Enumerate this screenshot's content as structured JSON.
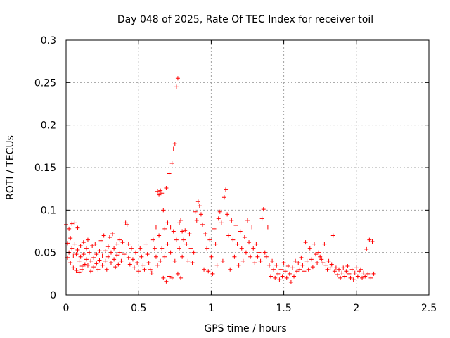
{
  "chart_data": {
    "type": "scatter",
    "title": "Day 048 of 2025, Rate Of TEC Index for receiver toil",
    "xlabel": "GPS time / hours",
    "ylabel": "ROTI / TECUs",
    "xlim": [
      0,
      2.5
    ],
    "ylim": [
      0,
      0.3
    ],
    "x_ticks": [
      0,
      0.5,
      1,
      1.5,
      2,
      2.5
    ],
    "x_tick_labels": [
      "0",
      "0.5",
      "1",
      "1.5",
      "2",
      "2.5"
    ],
    "y_ticks": [
      0,
      0.05,
      0.1,
      0.15,
      0.2,
      0.25,
      0.3
    ],
    "y_tick_labels": [
      "0",
      "0.05",
      "0.1",
      "0.15",
      "0.2",
      "0.25",
      "0.3"
    ],
    "grid": true,
    "marker": "+",
    "color": "#ff0000",
    "series": [
      {
        "name": "ROTI",
        "points": [
          [
            0.0,
            0.083
          ],
          [
            0.01,
            0.061
          ],
          [
            0.01,
            0.044
          ],
          [
            0.02,
            0.078
          ],
          [
            0.02,
            0.05
          ],
          [
            0.03,
            0.067
          ],
          [
            0.03,
            0.038
          ],
          [
            0.04,
            0.084
          ],
          [
            0.04,
            0.055
          ],
          [
            0.05,
            0.046
          ],
          [
            0.05,
            0.032
          ],
          [
            0.06,
            0.085
          ],
          [
            0.06,
            0.06
          ],
          [
            0.07,
            0.048
          ],
          [
            0.07,
            0.029
          ],
          [
            0.08,
            0.079
          ],
          [
            0.08,
            0.053
          ],
          [
            0.09,
            0.04
          ],
          [
            0.09,
            0.027
          ],
          [
            0.1,
            0.058
          ],
          [
            0.1,
            0.045
          ],
          [
            0.11,
            0.034
          ],
          [
            0.11,
            0.03
          ],
          [
            0.12,
            0.062
          ],
          [
            0.12,
            0.048
          ],
          [
            0.13,
            0.036
          ],
          [
            0.14,
            0.055
          ],
          [
            0.14,
            0.042
          ],
          [
            0.15,
            0.065
          ],
          [
            0.15,
            0.035
          ],
          [
            0.16,
            0.05
          ],
          [
            0.17,
            0.04
          ],
          [
            0.17,
            0.028
          ],
          [
            0.18,
            0.058
          ],
          [
            0.19,
            0.044
          ],
          [
            0.19,
            0.033
          ],
          [
            0.2,
            0.06
          ],
          [
            0.21,
            0.048
          ],
          [
            0.21,
            0.037
          ],
          [
            0.22,
            0.03
          ],
          [
            0.23,
            0.052
          ],
          [
            0.23,
            0.041
          ],
          [
            0.24,
            0.064
          ],
          [
            0.25,
            0.046
          ],
          [
            0.25,
            0.035
          ],
          [
            0.26,
            0.07
          ],
          [
            0.27,
            0.052
          ],
          [
            0.27,
            0.04
          ],
          [
            0.28,
            0.03
          ],
          [
            0.29,
            0.057
          ],
          [
            0.29,
            0.045
          ],
          [
            0.3,
            0.068
          ],
          [
            0.31,
            0.05
          ],
          [
            0.31,
            0.038
          ],
          [
            0.32,
            0.072
          ],
          [
            0.33,
            0.055
          ],
          [
            0.33,
            0.042
          ],
          [
            0.34,
            0.033
          ],
          [
            0.35,
            0.06
          ],
          [
            0.35,
            0.047
          ],
          [
            0.36,
            0.036
          ],
          [
            0.37,
            0.065
          ],
          [
            0.37,
            0.05
          ],
          [
            0.38,
            0.04
          ],
          [
            0.39,
            0.062
          ],
          [
            0.4,
            0.048
          ],
          [
            0.41,
            0.085
          ],
          [
            0.42,
            0.083
          ],
          [
            0.43,
            0.06
          ],
          [
            0.43,
            0.044
          ],
          [
            0.44,
            0.036
          ],
          [
            0.45,
            0.055
          ],
          [
            0.46,
            0.042
          ],
          [
            0.47,
            0.032
          ],
          [
            0.48,
            0.05
          ],
          [
            0.49,
            0.038
          ],
          [
            0.5,
            0.028
          ],
          [
            0.51,
            0.055
          ],
          [
            0.52,
            0.045
          ],
          [
            0.53,
            0.035
          ],
          [
            0.54,
            0.03
          ],
          [
            0.55,
            0.06
          ],
          [
            0.56,
            0.048
          ],
          [
            0.57,
            0.038
          ],
          [
            0.58,
            0.03
          ],
          [
            0.59,
            0.026
          ],
          [
            0.6,
            0.065
          ],
          [
            0.61,
            0.055
          ],
          [
            0.62,
            0.08
          ],
          [
            0.62,
            0.045
          ],
          [
            0.63,
            0.122
          ],
          [
            0.63,
            0.035
          ],
          [
            0.64,
            0.118
          ],
          [
            0.64,
            0.07
          ],
          [
            0.65,
            0.123
          ],
          [
            0.65,
            0.04
          ],
          [
            0.66,
            0.12
          ],
          [
            0.66,
            0.055
          ],
          [
            0.67,
            0.1
          ],
          [
            0.67,
            0.02
          ],
          [
            0.68,
            0.078
          ],
          [
            0.68,
            0.045
          ],
          [
            0.69,
            0.126
          ],
          [
            0.69,
            0.016
          ],
          [
            0.7,
            0.085
          ],
          [
            0.7,
            0.06
          ],
          [
            0.71,
            0.143
          ],
          [
            0.71,
            0.022
          ],
          [
            0.72,
            0.08
          ],
          [
            0.72,
            0.05
          ],
          [
            0.73,
            0.155
          ],
          [
            0.73,
            0.02
          ],
          [
            0.74,
            0.172
          ],
          [
            0.74,
            0.075
          ],
          [
            0.75,
            0.178
          ],
          [
            0.75,
            0.04
          ],
          [
            0.76,
            0.245
          ],
          [
            0.76,
            0.065
          ],
          [
            0.77,
            0.255
          ],
          [
            0.77,
            0.025
          ],
          [
            0.78,
            0.085
          ],
          [
            0.78,
            0.055
          ],
          [
            0.79,
            0.088
          ],
          [
            0.79,
            0.02
          ],
          [
            0.8,
            0.075
          ],
          [
            0.8,
            0.045
          ],
          [
            0.81,
            0.065
          ],
          [
            0.82,
            0.076
          ],
          [
            0.83,
            0.06
          ],
          [
            0.84,
            0.04
          ],
          [
            0.85,
            0.072
          ],
          [
            0.86,
            0.055
          ],
          [
            0.87,
            0.038
          ],
          [
            0.88,
            0.05
          ],
          [
            0.89,
            0.098
          ],
          [
            0.9,
            0.088
          ],
          [
            0.91,
            0.11
          ],
          [
            0.92,
            0.105
          ],
          [
            0.93,
            0.095
          ],
          [
            0.94,
            0.083
          ],
          [
            0.95,
            0.03
          ],
          [
            0.96,
            0.072
          ],
          [
            0.97,
            0.055
          ],
          [
            0.98,
            0.028
          ],
          [
            0.99,
            0.065
          ],
          [
            1.0,
            0.045
          ],
          [
            1.01,
            0.025
          ],
          [
            1.02,
            0.078
          ],
          [
            1.03,
            0.06
          ],
          [
            1.04,
            0.035
          ],
          [
            1.05,
            0.09
          ],
          [
            1.06,
            0.098
          ],
          [
            1.07,
            0.085
          ],
          [
            1.08,
            0.04
          ],
          [
            1.09,
            0.115
          ],
          [
            1.1,
            0.124
          ],
          [
            1.11,
            0.095
          ],
          [
            1.12,
            0.07
          ],
          [
            1.13,
            0.03
          ],
          [
            1.14,
            0.088
          ],
          [
            1.15,
            0.065
          ],
          [
            1.16,
            0.045
          ],
          [
            1.17,
            0.082
          ],
          [
            1.18,
            0.06
          ],
          [
            1.19,
            0.035
          ],
          [
            1.2,
            0.075
          ],
          [
            1.21,
            0.055
          ],
          [
            1.22,
            0.04
          ],
          [
            1.23,
            0.068
          ],
          [
            1.24,
            0.05
          ],
          [
            1.25,
            0.088
          ],
          [
            1.26,
            0.062
          ],
          [
            1.27,
            0.045
          ],
          [
            1.28,
            0.08
          ],
          [
            1.29,
            0.055
          ],
          [
            1.3,
            0.038
          ],
          [
            1.31,
            0.06
          ],
          [
            1.32,
            0.045
          ],
          [
            1.33,
            0.05
          ],
          [
            1.34,
            0.04
          ],
          [
            1.35,
            0.09
          ],
          [
            1.36,
            0.101
          ],
          [
            1.37,
            0.05
          ],
          [
            1.38,
            0.045
          ],
          [
            1.39,
            0.08
          ],
          [
            1.4,
            0.035
          ],
          [
            1.41,
            0.022
          ],
          [
            1.42,
            0.04
          ],
          [
            1.43,
            0.03
          ],
          [
            1.44,
            0.02
          ],
          [
            1.45,
            0.035
          ],
          [
            1.46,
            0.025
          ],
          [
            1.47,
            0.018
          ],
          [
            1.48,
            0.03
          ],
          [
            1.49,
            0.022
          ],
          [
            1.5,
            0.038
          ],
          [
            1.51,
            0.028
          ],
          [
            1.52,
            0.02
          ],
          [
            1.53,
            0.034
          ],
          [
            1.54,
            0.025
          ],
          [
            1.55,
            0.015
          ],
          [
            1.56,
            0.032
          ],
          [
            1.57,
            0.022
          ],
          [
            1.58,
            0.04
          ],
          [
            1.59,
            0.028
          ],
          [
            1.6,
            0.038
          ],
          [
            1.61,
            0.03
          ],
          [
            1.62,
            0.044
          ],
          [
            1.63,
            0.035
          ],
          [
            1.64,
            0.028
          ],
          [
            1.65,
            0.062
          ],
          [
            1.66,
            0.04
          ],
          [
            1.67,
            0.03
          ],
          [
            1.68,
            0.055
          ],
          [
            1.69,
            0.042
          ],
          [
            1.7,
            0.033
          ],
          [
            1.71,
            0.06
          ],
          [
            1.72,
            0.048
          ],
          [
            1.73,
            0.038
          ],
          [
            1.74,
            0.05
          ],
          [
            1.75,
            0.045
          ],
          [
            1.76,
            0.042
          ],
          [
            1.77,
            0.038
          ],
          [
            1.78,
            0.06
          ],
          [
            1.79,
            0.035
          ],
          [
            1.8,
            0.03
          ],
          [
            1.81,
            0.04
          ],
          [
            1.82,
            0.032
          ],
          [
            1.83,
            0.036
          ],
          [
            1.84,
            0.07
          ],
          [
            1.85,
            0.028
          ],
          [
            1.86,
            0.032
          ],
          [
            1.87,
            0.024
          ],
          [
            1.88,
            0.03
          ],
          [
            1.89,
            0.02
          ],
          [
            1.9,
            0.026
          ],
          [
            1.91,
            0.032
          ],
          [
            1.92,
            0.022
          ],
          [
            1.93,
            0.028
          ],
          [
            1.94,
            0.034
          ],
          [
            1.95,
            0.025
          ],
          [
            1.96,
            0.02
          ],
          [
            1.97,
            0.03
          ],
          [
            1.98,
            0.018
          ],
          [
            1.99,
            0.026
          ],
          [
            2.0,
            0.032
          ],
          [
            2.01,
            0.022
          ],
          [
            2.02,
            0.028
          ],
          [
            2.03,
            0.03
          ],
          [
            2.04,
            0.02
          ],
          [
            2.05,
            0.026
          ],
          [
            2.06,
            0.022
          ],
          [
            2.07,
            0.054
          ],
          [
            2.08,
            0.025
          ],
          [
            2.09,
            0.065
          ],
          [
            2.1,
            0.02
          ],
          [
            2.11,
            0.063
          ],
          [
            2.12,
            0.025
          ]
        ]
      }
    ]
  }
}
